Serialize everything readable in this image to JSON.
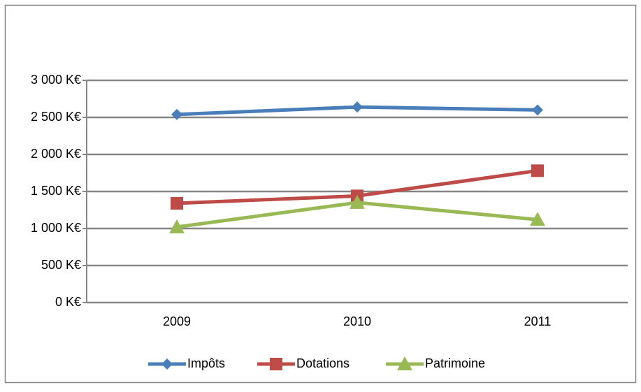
{
  "chart_data": {
    "type": "line",
    "categories": [
      "2009",
      "2010",
      "2011"
    ],
    "series": [
      {
        "name": "Impôts",
        "color": "#4a7ebb",
        "marker": "diamond",
        "values": [
          2540,
          2640,
          2600
        ]
      },
      {
        "name": "Dotations",
        "color": "#be4b48",
        "marker": "square",
        "values": [
          1340,
          1440,
          1780
        ]
      },
      {
        "name": "Patrimoine",
        "color": "#98b954",
        "marker": "triangle",
        "values": [
          1020,
          1350,
          1120
        ]
      }
    ],
    "ylim": [
      0,
      3000
    ],
    "yticks": [
      {
        "value": 0,
        "label": "0 K€"
      },
      {
        "value": 500,
        "label": "500 K€"
      },
      {
        "value": 1000,
        "label": "1 000 K€"
      },
      {
        "value": 1500,
        "label": "1 500 K€"
      },
      {
        "value": 2000,
        "label": "2 000 K€"
      },
      {
        "value": 2500,
        "label": "2 500 K€"
      },
      {
        "value": 3000,
        "label": "3 000 K€"
      }
    ],
    "grid": true,
    "legend": "bottom"
  }
}
